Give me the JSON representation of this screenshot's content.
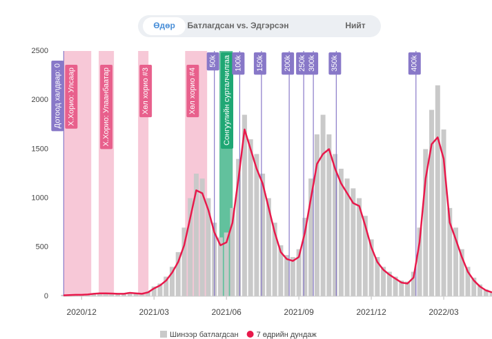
{
  "tabs": [
    "Өдөр",
    "Батлагдсан vs. Эдгэрсэн",
    "Нийт"
  ],
  "active_tab": 0,
  "chart_data": {
    "type": "combo",
    "x": [
      -0.75,
      -0.5,
      -0.25,
      0,
      0.25,
      0.5,
      0.75,
      1,
      1.25,
      1.5,
      1.75,
      2,
      2.25,
      2.5,
      2.75,
      3,
      3.25,
      3.5,
      3.75,
      4,
      4.25,
      4.5,
      4.75,
      5,
      5.25,
      5.5,
      5.75,
      6,
      6.25,
      6.5,
      6.75,
      7,
      7.25,
      7.5,
      7.75,
      8,
      8.25,
      8.5,
      8.75,
      9,
      9.25,
      9.5,
      9.75,
      10,
      10.25,
      10.5,
      10.75,
      11,
      11.25,
      11.5,
      11.75,
      12,
      12.25,
      12.5,
      12.75,
      13,
      13.25,
      13.5,
      13.75,
      14,
      14.25,
      14.5,
      14.75,
      15,
      15.25,
      15.5,
      15.75,
      16,
      16.25,
      16.5,
      16.75,
      17
    ],
    "series": [
      {
        "name": "Шинээр батлагдсан",
        "type": "bar",
        "color": "#c9c9c9",
        "values": [
          15,
          15,
          20,
          20,
          25,
          30,
          35,
          35,
          30,
          30,
          30,
          40,
          35,
          30,
          50,
          100,
          130,
          200,
          300,
          450,
          700,
          1000,
          1250,
          1200,
          1000,
          750,
          600,
          650,
          900,
          1400,
          1850,
          1600,
          1450,
          1250,
          1000,
          750,
          520,
          420,
          400,
          480,
          800,
          1200,
          1650,
          1850,
          1650,
          1450,
          1300,
          1200,
          1100,
          1000,
          820,
          580,
          400,
          300,
          250,
          200,
          160,
          150,
          250,
          700,
          1500,
          1900,
          2150,
          1700,
          900,
          700,
          480,
          300,
          190,
          120,
          70,
          50
        ]
      },
      {
        "name": "7 өдрийн дундаж",
        "type": "line",
        "color": "#e8194b",
        "values": [
          10,
          12,
          15,
          15,
          18,
          25,
          30,
          30,
          28,
          25,
          25,
          35,
          30,
          25,
          40,
          80,
          110,
          160,
          240,
          350,
          520,
          800,
          1080,
          1050,
          880,
          650,
          520,
          550,
          750,
          1200,
          1700,
          1500,
          1300,
          1150,
          900,
          650,
          450,
          380,
          360,
          400,
          650,
          1000,
          1350,
          1450,
          1500,
          1300,
          1150,
          1050,
          950,
          920,
          720,
          500,
          350,
          270,
          220,
          180,
          140,
          130,
          190,
          550,
          1200,
          1550,
          1620,
          1400,
          750,
          580,
          400,
          250,
          160,
          100,
          60,
          40
        ]
      }
    ],
    "xlim": [
      -0.75,
      17
    ],
    "xticks": [
      {
        "value": 0,
        "label": "2020/12"
      },
      {
        "value": 3,
        "label": "2021/03"
      },
      {
        "value": 6,
        "label": "2021/06"
      },
      {
        "value": 9,
        "label": "2021/09"
      },
      {
        "value": 12,
        "label": "2021/12"
      },
      {
        "value": 15,
        "label": "2022/03"
      }
    ],
    "ylim": [
      0,
      2500
    ],
    "yticks": [
      0,
      500,
      1000,
      1500,
      2000,
      2500
    ],
    "grid": false,
    "bands": [
      {
        "label": "Х.Хорио: Улсаар",
        "start": -0.74,
        "end": 0.4,
        "color": "#e8608c"
      },
      {
        "label": "Х.Хорио: Улаанбаатар",
        "start": 0.71,
        "end": 1.34,
        "color": "#e8608c"
      },
      {
        "label": "Хөл хорио #3",
        "start": 2.34,
        "end": 2.77,
        "color": "#e8608c"
      },
      {
        "label": "Хөл хорио #4",
        "start": 4.29,
        "end": 5.2,
        "color": "#e8608c"
      },
      {
        "label": "Сонгуулийн сурталчилгаа",
        "start": 5.71,
        "end": 6.26,
        "color": "#1fa774"
      }
    ],
    "markers": [
      {
        "label": "Дотоод халдвар: 0",
        "x": -0.74
      },
      {
        "label": "50k",
        "x": 5.5
      },
      {
        "label": "100k",
        "x": 6.55
      },
      {
        "label": "150k",
        "x": 7.45
      },
      {
        "label": "200k",
        "x": 8.6
      },
      {
        "label": "250k",
        "x": 9.2
      },
      {
        "label": "300k",
        "x": 9.6
      },
      {
        "label": "350k",
        "x": 10.55
      },
      {
        "label": "400k",
        "x": 13.85
      }
    ],
    "marker_color": "#8878c8"
  }
}
